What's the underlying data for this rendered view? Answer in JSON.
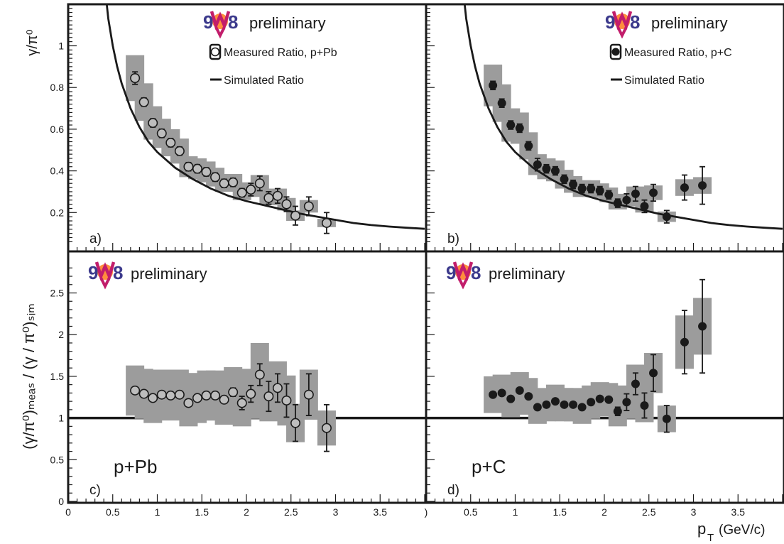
{
  "logo": {
    "text": "WA98",
    "colors": [
      "#3c3a8c",
      "#ff7a1a",
      "#c21d6b",
      "#ffd21a"
    ]
  },
  "axis": {
    "x_label_main": "p",
    "x_label_sub": "T",
    "x_label_unit": "(GeV/c)",
    "x_ticks": [
      "0",
      "0.5",
      "1",
      "1.5",
      "2",
      "2.5",
      "3",
      "3.5"
    ],
    "x_ticks_right": [
      ")",
      "0.5",
      "1",
      "1.5",
      "2",
      "2.5",
      "3",
      "3.5"
    ],
    "y_label_top": "γ/π⁰",
    "y_label_bottom": "(γ/π⁰)ₘₑₐₛ / (γ / π⁰)ₛᵢₘ"
  },
  "chart_data": [
    {
      "panel": "a",
      "label": "a)",
      "type": "scatter",
      "preliminary": "preliminary",
      "legend": [
        "Measured Ratio, p+Pb",
        "Simulated Ratio"
      ],
      "marker": "open",
      "xlim": [
        0,
        4
      ],
      "ylim": [
        0.05,
        1.2
      ],
      "yticks": [
        "0.2",
        "0.4",
        "0.6",
        "0.8",
        "1"
      ],
      "points": [
        {
          "x": 0.75,
          "y": 0.845,
          "sys": 0.11,
          "stat": 0.03
        },
        {
          "x": 0.85,
          "y": 0.73,
          "sys": 0.09,
          "stat": 0.02
        },
        {
          "x": 0.95,
          "y": 0.63,
          "sys": 0.08,
          "stat": 0.02
        },
        {
          "x": 1.05,
          "y": 0.58,
          "sys": 0.07,
          "stat": 0.02
        },
        {
          "x": 1.15,
          "y": 0.535,
          "sys": 0.065,
          "stat": 0.02
        },
        {
          "x": 1.25,
          "y": 0.495,
          "sys": 0.06,
          "stat": 0.02
        },
        {
          "x": 1.35,
          "y": 0.42,
          "sys": 0.05,
          "stat": 0.02
        },
        {
          "x": 1.45,
          "y": 0.41,
          "sys": 0.05,
          "stat": 0.02
        },
        {
          "x": 1.55,
          "y": 0.395,
          "sys": 0.05,
          "stat": 0.02
        },
        {
          "x": 1.65,
          "y": 0.37,
          "sys": 0.045,
          "stat": 0.02
        },
        {
          "x": 1.75,
          "y": 0.34,
          "sys": 0.04,
          "stat": 0.02
        },
        {
          "x": 1.85,
          "y": 0.345,
          "sys": 0.04,
          "stat": 0.02
        },
        {
          "x": 1.95,
          "y": 0.295,
          "sys": 0.035,
          "stat": 0.02
        },
        {
          "x": 2.05,
          "y": 0.31,
          "sys": 0.035,
          "stat": 0.03
        },
        {
          "x": 2.15,
          "y": 0.34,
          "sys": 0.04,
          "stat": 0.035
        },
        {
          "x": 2.25,
          "y": 0.27,
          "sys": 0.035,
          "stat": 0.03
        },
        {
          "x": 2.35,
          "y": 0.28,
          "sys": 0.035,
          "stat": 0.035
        },
        {
          "x": 2.45,
          "y": 0.24,
          "sys": 0.03,
          "stat": 0.035
        },
        {
          "x": 2.55,
          "y": 0.185,
          "sys": 0.025,
          "stat": 0.045
        },
        {
          "x": 2.7,
          "y": 0.23,
          "sys": 0.03,
          "stat": 0.045
        },
        {
          "x": 2.9,
          "y": 0.15,
          "sys": 0.02,
          "stat": 0.05
        }
      ],
      "curve": [
        {
          "x": 0.42,
          "y": 1.25
        },
        {
          "x": 0.45,
          "y": 1.13
        },
        {
          "x": 0.5,
          "y": 1.0
        },
        {
          "x": 0.55,
          "y": 0.9
        },
        {
          "x": 0.6,
          "y": 0.82
        },
        {
          "x": 0.7,
          "y": 0.7
        },
        {
          "x": 0.8,
          "y": 0.61
        },
        {
          "x": 0.9,
          "y": 0.54
        },
        {
          "x": 1.0,
          "y": 0.49
        },
        {
          "x": 1.2,
          "y": 0.415
        },
        {
          "x": 1.4,
          "y": 0.36
        },
        {
          "x": 1.6,
          "y": 0.315
        },
        {
          "x": 1.8,
          "y": 0.28
        },
        {
          "x": 2.0,
          "y": 0.255
        },
        {
          "x": 2.2,
          "y": 0.235
        },
        {
          "x": 2.4,
          "y": 0.215
        },
        {
          "x": 2.6,
          "y": 0.195
        },
        {
          "x": 2.8,
          "y": 0.18
        },
        {
          "x": 3.0,
          "y": 0.165
        },
        {
          "x": 3.2,
          "y": 0.15
        },
        {
          "x": 3.4,
          "y": 0.14
        },
        {
          "x": 3.6,
          "y": 0.133
        },
        {
          "x": 3.8,
          "y": 0.127
        },
        {
          "x": 4.0,
          "y": 0.122
        }
      ]
    },
    {
      "panel": "b",
      "label": "b)",
      "type": "scatter",
      "preliminary": "preliminary",
      "legend": [
        "Measured Ratio, p+C",
        "Simulated Ratio"
      ],
      "marker": "filled",
      "xlim": [
        0,
        4
      ],
      "ylim": [
        0.05,
        1.2
      ],
      "yticks": [],
      "points": [
        {
          "x": 0.75,
          "y": 0.81,
          "sys": 0.1,
          "stat": 0.02
        },
        {
          "x": 0.85,
          "y": 0.725,
          "sys": 0.09,
          "stat": 0.02
        },
        {
          "x": 0.95,
          "y": 0.62,
          "sys": 0.08,
          "stat": 0.02
        },
        {
          "x": 1.05,
          "y": 0.605,
          "sys": 0.075,
          "stat": 0.02
        },
        {
          "x": 1.15,
          "y": 0.52,
          "sys": 0.065,
          "stat": 0.02
        },
        {
          "x": 1.25,
          "y": 0.43,
          "sys": 0.05,
          "stat": 0.03
        },
        {
          "x": 1.35,
          "y": 0.41,
          "sys": 0.05,
          "stat": 0.02
        },
        {
          "x": 1.45,
          "y": 0.4,
          "sys": 0.05,
          "stat": 0.02
        },
        {
          "x": 1.55,
          "y": 0.36,
          "sys": 0.045,
          "stat": 0.02
        },
        {
          "x": 1.65,
          "y": 0.335,
          "sys": 0.04,
          "stat": 0.02
        },
        {
          "x": 1.75,
          "y": 0.315,
          "sys": 0.04,
          "stat": 0.02
        },
        {
          "x": 1.85,
          "y": 0.315,
          "sys": 0.04,
          "stat": 0.02
        },
        {
          "x": 1.95,
          "y": 0.305,
          "sys": 0.035,
          "stat": 0.02
        },
        {
          "x": 2.05,
          "y": 0.285,
          "sys": 0.035,
          "stat": 0.02
        },
        {
          "x": 2.15,
          "y": 0.245,
          "sys": 0.03,
          "stat": 0.02
        },
        {
          "x": 2.25,
          "y": 0.26,
          "sys": 0.03,
          "stat": 0.03
        },
        {
          "x": 2.35,
          "y": 0.29,
          "sys": 0.035,
          "stat": 0.035
        },
        {
          "x": 2.45,
          "y": 0.23,
          "sys": 0.03,
          "stat": 0.03
        },
        {
          "x": 2.55,
          "y": 0.295,
          "sys": 0.035,
          "stat": 0.04
        },
        {
          "x": 2.7,
          "y": 0.18,
          "sys": 0.025,
          "stat": 0.03
        },
        {
          "x": 2.9,
          "y": 0.32,
          "sys": 0.04,
          "stat": 0.06
        },
        {
          "x": 3.1,
          "y": 0.33,
          "sys": 0.04,
          "stat": 0.09
        }
      ],
      "curve": [
        {
          "x": 0.42,
          "y": 1.25
        },
        {
          "x": 0.45,
          "y": 1.13
        },
        {
          "x": 0.5,
          "y": 1.0
        },
        {
          "x": 0.55,
          "y": 0.9
        },
        {
          "x": 0.6,
          "y": 0.82
        },
        {
          "x": 0.7,
          "y": 0.7
        },
        {
          "x": 0.8,
          "y": 0.61
        },
        {
          "x": 0.9,
          "y": 0.54
        },
        {
          "x": 1.0,
          "y": 0.49
        },
        {
          "x": 1.2,
          "y": 0.415
        },
        {
          "x": 1.4,
          "y": 0.36
        },
        {
          "x": 1.6,
          "y": 0.315
        },
        {
          "x": 1.8,
          "y": 0.28
        },
        {
          "x": 2.0,
          "y": 0.255
        },
        {
          "x": 2.2,
          "y": 0.235
        },
        {
          "x": 2.4,
          "y": 0.215
        },
        {
          "x": 2.6,
          "y": 0.195
        },
        {
          "x": 2.8,
          "y": 0.18
        },
        {
          "x": 3.0,
          "y": 0.165
        },
        {
          "x": 3.2,
          "y": 0.15
        },
        {
          "x": 3.4,
          "y": 0.14
        },
        {
          "x": 3.6,
          "y": 0.133
        },
        {
          "x": 3.8,
          "y": 0.127
        },
        {
          "x": 4.0,
          "y": 0.122
        }
      ]
    },
    {
      "panel": "c",
      "label": "c)",
      "type": "scatter",
      "preliminary": "preliminary",
      "system": "p+Pb",
      "marker": "open",
      "xlim": [
        0,
        4
      ],
      "ylim": [
        0,
        2.85
      ],
      "yticks": [
        "0",
        "0.5",
        "1",
        "1.5",
        "2",
        "2.5"
      ],
      "ref_line": 1,
      "points": [
        {
          "x": 0.75,
          "y": 1.33,
          "sys": 0.3,
          "stat": 0.02
        },
        {
          "x": 0.85,
          "y": 1.29,
          "sys": 0.3,
          "stat": 0.02
        },
        {
          "x": 0.95,
          "y": 1.24,
          "sys": 0.3,
          "stat": 0.02
        },
        {
          "x": 1.05,
          "y": 1.28,
          "sys": 0.3,
          "stat": 0.02
        },
        {
          "x": 1.15,
          "y": 1.27,
          "sys": 0.3,
          "stat": 0.02
        },
        {
          "x": 1.25,
          "y": 1.28,
          "sys": 0.3,
          "stat": 0.02
        },
        {
          "x": 1.35,
          "y": 1.18,
          "sys": 0.28,
          "stat": 0.02
        },
        {
          "x": 1.45,
          "y": 1.24,
          "sys": 0.3,
          "stat": 0.02
        },
        {
          "x": 1.55,
          "y": 1.27,
          "sys": 0.3,
          "stat": 0.02
        },
        {
          "x": 1.65,
          "y": 1.27,
          "sys": 0.3,
          "stat": 0.02
        },
        {
          "x": 1.75,
          "y": 1.22,
          "sys": 0.3,
          "stat": 0.02
        },
        {
          "x": 1.85,
          "y": 1.31,
          "sys": 0.3,
          "stat": 0.05
        },
        {
          "x": 1.95,
          "y": 1.18,
          "sys": 0.28,
          "stat": 0.08
        },
        {
          "x": 2.05,
          "y": 1.29,
          "sys": 0.3,
          "stat": 0.1
        },
        {
          "x": 2.15,
          "y": 1.52,
          "sys": 0.38,
          "stat": 0.13
        },
        {
          "x": 2.25,
          "y": 1.26,
          "sys": 0.3,
          "stat": 0.18
        },
        {
          "x": 2.35,
          "y": 1.36,
          "sys": 0.32,
          "stat": 0.17
        },
        {
          "x": 2.45,
          "y": 1.21,
          "sys": 0.3,
          "stat": 0.2
        },
        {
          "x": 2.55,
          "y": 0.94,
          "sys": 0.23,
          "stat": 0.22
        },
        {
          "x": 2.7,
          "y": 1.28,
          "sys": 0.3,
          "stat": 0.25
        },
        {
          "x": 2.9,
          "y": 0.88,
          "sys": 0.21,
          "stat": 0.28
        }
      ]
    },
    {
      "panel": "d",
      "label": "d)",
      "type": "scatter",
      "preliminary": "preliminary",
      "system": "p+C",
      "marker": "filled",
      "xlim": [
        0,
        4
      ],
      "ylim": [
        0,
        2.85
      ],
      "yticks": [],
      "ref_line": 1,
      "points": [
        {
          "x": 0.75,
          "y": 1.28,
          "sys": 0.22,
          "stat": 0.02
        },
        {
          "x": 0.85,
          "y": 1.3,
          "sys": 0.22,
          "stat": 0.02
        },
        {
          "x": 0.95,
          "y": 1.23,
          "sys": 0.22,
          "stat": 0.02
        },
        {
          "x": 1.05,
          "y": 1.33,
          "sys": 0.22,
          "stat": 0.02
        },
        {
          "x": 1.15,
          "y": 1.26,
          "sys": 0.22,
          "stat": 0.02
        },
        {
          "x": 1.25,
          "y": 1.13,
          "sys": 0.2,
          "stat": 0.04
        },
        {
          "x": 1.35,
          "y": 1.16,
          "sys": 0.2,
          "stat": 0.02
        },
        {
          "x": 1.45,
          "y": 1.2,
          "sys": 0.2,
          "stat": 0.02
        },
        {
          "x": 1.55,
          "y": 1.16,
          "sys": 0.2,
          "stat": 0.02
        },
        {
          "x": 1.65,
          "y": 1.16,
          "sys": 0.2,
          "stat": 0.02
        },
        {
          "x": 1.75,
          "y": 1.13,
          "sys": 0.2,
          "stat": 0.02
        },
        {
          "x": 1.85,
          "y": 1.19,
          "sys": 0.2,
          "stat": 0.02
        },
        {
          "x": 1.95,
          "y": 1.23,
          "sys": 0.2,
          "stat": 0.03
        },
        {
          "x": 2.05,
          "y": 1.22,
          "sys": 0.2,
          "stat": 0.04
        },
        {
          "x": 2.15,
          "y": 1.08,
          "sys": 0.18,
          "stat": 0.05
        },
        {
          "x": 2.25,
          "y": 1.19,
          "sys": 0.2,
          "stat": 0.1
        },
        {
          "x": 2.35,
          "y": 1.41,
          "sys": 0.23,
          "stat": 0.13
        },
        {
          "x": 2.45,
          "y": 1.15,
          "sys": 0.2,
          "stat": 0.15
        },
        {
          "x": 2.55,
          "y": 1.54,
          "sys": 0.24,
          "stat": 0.22
        },
        {
          "x": 2.7,
          "y": 0.99,
          "sys": 0.16,
          "stat": 0.16
        },
        {
          "x": 2.9,
          "y": 1.91,
          "sys": 0.32,
          "stat": 0.38
        },
        {
          "x": 3.1,
          "y": 2.1,
          "sys": 0.34,
          "stat": 0.56
        }
      ]
    }
  ]
}
